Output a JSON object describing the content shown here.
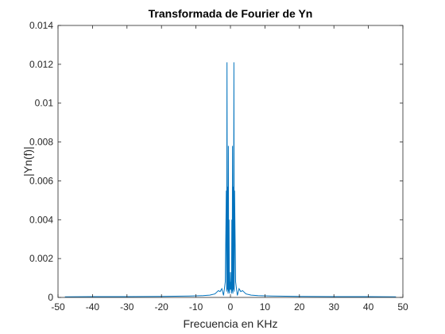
{
  "chart_data": {
    "type": "line",
    "title": "Transformada de Fourier de Yn",
    "xlabel": "Frecuencia en KHz",
    "ylabel": "|Yn(f)|",
    "xlim": [
      -50,
      50
    ],
    "ylim": [
      0,
      0.014
    ],
    "xticks": [
      -50,
      -40,
      -30,
      -20,
      -10,
      0,
      10,
      20,
      30,
      40,
      50
    ],
    "yticks": [
      0,
      0.002,
      0.004,
      0.006,
      0.008,
      0.01,
      0.012,
      0.014
    ],
    "xtick_labels": [
      "-50",
      "-40",
      "-30",
      "-20",
      "-10",
      "0",
      "10",
      "20",
      "30",
      "40",
      "50"
    ],
    "ytick_labels": [
      "0",
      "0.002",
      "0.004",
      "0.006",
      "0.008",
      "0.01",
      "0.012",
      "0.014"
    ],
    "grid": false,
    "series": [
      {
        "color": "#0072BD",
        "x": [
          -48,
          -40,
          -30,
          -20,
          -12,
          -8,
          -6,
          -4.5,
          -3.5,
          -3,
          -2.5,
          -2,
          -1.5,
          -1.2,
          -1.1,
          -1.0,
          -0.9,
          -0.8,
          -0.7,
          -0.6,
          -0.5,
          -0.4,
          -0.3,
          -0.2,
          -0.1,
          0,
          0.1,
          0.2,
          0.3,
          0.4,
          0.5,
          0.6,
          0.7,
          0.8,
          0.9,
          1.0,
          1.1,
          1.2,
          1.5,
          2,
          2.5,
          3,
          3.5,
          4.5,
          6,
          8,
          12,
          20,
          30,
          40,
          48
        ],
        "y": [
          3e-05,
          4e-05,
          4e-05,
          5e-05,
          7e-05,
          9e-05,
          0.00012,
          0.00018,
          0.00035,
          0.0003,
          0.00045,
          0.0001,
          0.0008,
          0.0055,
          0.0003,
          0.0121,
          0.0004,
          0.0057,
          0.0002,
          0.0078,
          0.0003,
          0.004,
          0.0002,
          0.0013,
          0.0004,
          0.0008,
          0.0004,
          0.0013,
          0.0002,
          0.004,
          0.0003,
          0.0078,
          0.0002,
          0.0057,
          0.0004,
          0.0121,
          0.0003,
          0.0055,
          0.0008,
          0.0001,
          0.00045,
          0.0003,
          0.00035,
          0.00018,
          0.00012,
          9e-05,
          7e-05,
          5e-05,
          4e-05,
          4e-05,
          3e-05
        ]
      }
    ]
  }
}
